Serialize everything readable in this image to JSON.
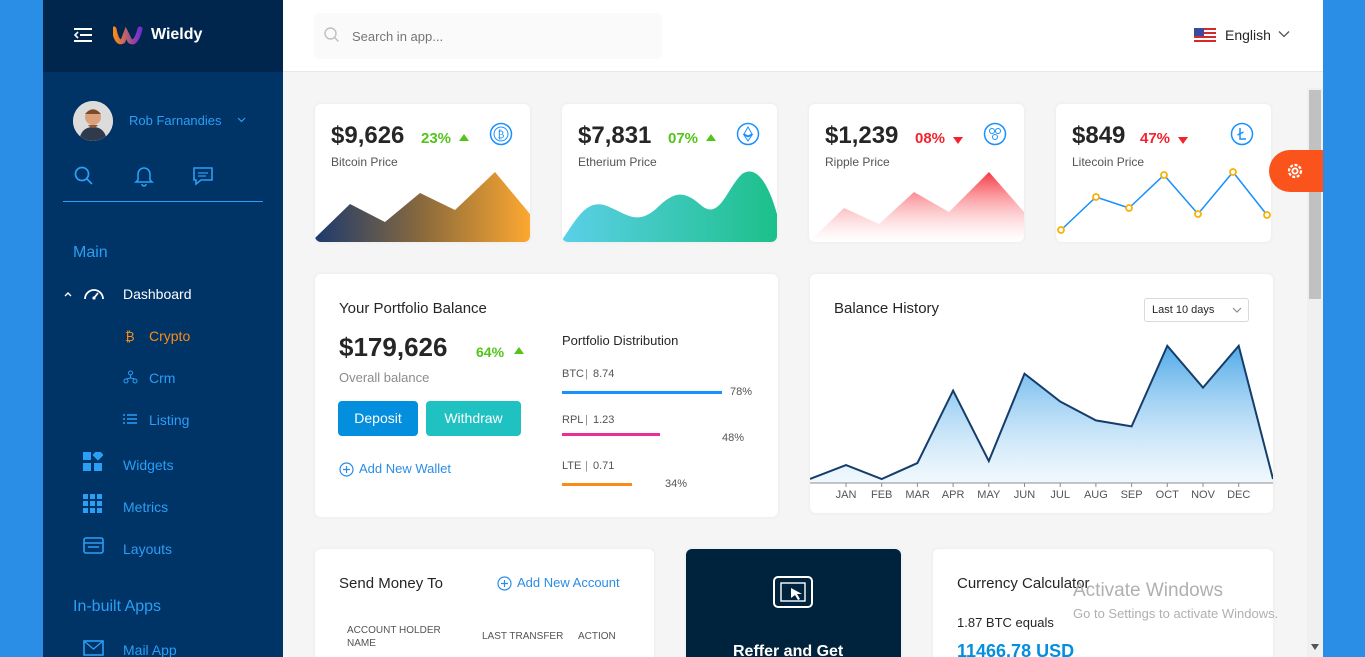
{
  "app": {
    "name": "Wieldy",
    "accent": "#2a9ff5",
    "sidebar_bg": "#003366",
    "active_color": "#fa8c16"
  },
  "user": {
    "name": "Rob Farnandies"
  },
  "sidebar": {
    "sections": [
      {
        "label": "Main"
      },
      {
        "label": "In-built Apps"
      }
    ],
    "dashboard_label": "Dashboard",
    "dashboard_items": [
      {
        "label": "Crypto",
        "icon": "bitcoin-icon",
        "active": true
      },
      {
        "label": "Crm",
        "icon": "crm-icon",
        "active": false
      },
      {
        "label": "Listing",
        "icon": "list-icon",
        "active": false
      }
    ],
    "items": [
      {
        "label": "Widgets",
        "icon": "widgets-icon"
      },
      {
        "label": "Metrics",
        "icon": "metrics-icon"
      },
      {
        "label": "Layouts",
        "icon": "layouts-icon"
      },
      {
        "label": "Mail App",
        "icon": "mail-icon"
      }
    ]
  },
  "search": {
    "placeholder": "Search in app..."
  },
  "language": {
    "label": "English"
  },
  "price_cards": [
    {
      "price": "$9,626",
      "change": "23%",
      "direction": "up",
      "label": "Bitcoin Price",
      "icon": "bitcoin-coin-icon"
    },
    {
      "price": "$7,831",
      "change": "07%",
      "direction": "up",
      "label": "Etherium Price",
      "icon": "ethereum-coin-icon"
    },
    {
      "price": "$1,239",
      "change": "08%",
      "direction": "down",
      "label": "Ripple Price",
      "icon": "ripple-coin-icon"
    },
    {
      "price": "$849",
      "change": "47%",
      "direction": "down",
      "label": "Litecoin Price",
      "icon": "litecoin-coin-icon"
    }
  ],
  "portfolio": {
    "title": "Your Portfolio Balance",
    "amount": "$179,626",
    "change": "64%",
    "subtitle": "Overall balance",
    "deposit_label": "Deposit",
    "withdraw_label": "Withdraw",
    "add_wallet_label": "Add New Wallet",
    "distribution_title": "Portfolio Distribution",
    "distribution": [
      {
        "coin": "BTC",
        "amount": "8.74",
        "percent": "78%",
        "fraction": 0.78,
        "color": "#1890ff"
      },
      {
        "coin": "RPL",
        "amount": "1.23",
        "percent": "48%",
        "fraction": 0.48,
        "color": "#eb2f96"
      },
      {
        "coin": "LTE",
        "amount": "0.71",
        "percent": "34%",
        "fraction": 0.34,
        "color": "#fa8c16"
      }
    ]
  },
  "balance_history": {
    "title": "Balance History",
    "filter": "Last 10 days"
  },
  "chart_data": {
    "type": "area",
    "title": "Balance History",
    "categories": [
      "JAN",
      "FEB",
      "MAR",
      "APR",
      "MAY",
      "JUN",
      "JUL",
      "AUG",
      "SEP",
      "OCT",
      "NOV",
      "DEC"
    ],
    "values": [
      18,
      4,
      20,
      93,
      22,
      110,
      82,
      63,
      57,
      138,
      96,
      138
    ],
    "ylim": [
      0,
      160
    ],
    "grid": false
  },
  "send_money": {
    "title": "Send Money To",
    "add_account_label": "Add New Account",
    "columns": [
      "ACCOUNT HOLDER NAME",
      "LAST TRANSFER",
      "ACTION"
    ]
  },
  "referral": {
    "title": "Reffer and Get"
  },
  "calculator": {
    "title": "Currency Calculator",
    "line": "1.87 BTC equals",
    "result": "11466.78 USD"
  },
  "watermark": {
    "line1": "Activate Windows",
    "line2": "Go to Settings to activate Windows."
  }
}
